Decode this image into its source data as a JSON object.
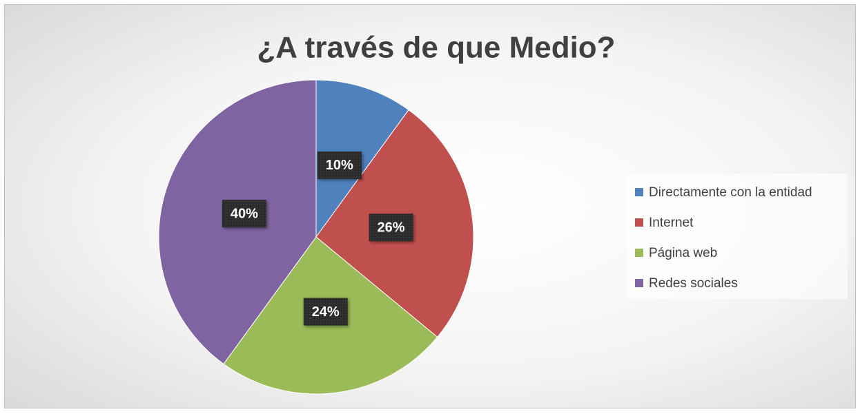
{
  "chart_data": {
    "type": "pie",
    "title": "¿A través de que Medio?",
    "categories": [
      "Directamente con la entidad",
      "Internet",
      "Página web",
      "Redes sociales"
    ],
    "values": [
      10,
      26,
      24,
      40
    ],
    "value_labels": [
      "10%",
      "26%",
      "24%",
      "40%"
    ],
    "colors": [
      "#4f81bd",
      "#c0504d",
      "#9bbb59",
      "#8064a2"
    ],
    "legend": "right"
  }
}
